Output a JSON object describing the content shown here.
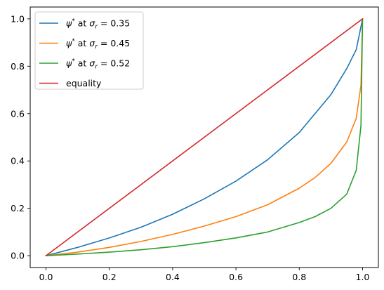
{
  "chart_data": {
    "type": "line",
    "title": "",
    "xlabel": "",
    "ylabel": "",
    "xlim": [
      -0.05,
      1.05
    ],
    "ylim": [
      -0.05,
      1.05
    ],
    "x_ticks": [
      0.0,
      0.2,
      0.4,
      0.6,
      0.8,
      1.0
    ],
    "y_ticks": [
      0.0,
      0.2,
      0.4,
      0.6,
      0.8,
      1.0
    ],
    "x_tick_labels": [
      "0.0",
      "0.2",
      "0.4",
      "0.6",
      "0.8",
      "1.0"
    ],
    "y_tick_labels": [
      "0.0",
      "0.2",
      "0.4",
      "0.6",
      "0.8",
      "1.0"
    ],
    "grid": false,
    "legend_position": "upper-left",
    "series": [
      {
        "name": "ψ* at σr = 0.35",
        "legend": {
          "sym": "ψ",
          "sup": "*",
          "mid": " at ",
          "sym2": "σ",
          "sub": "r",
          "val": " = 0.35"
        },
        "color": "#1f77b4",
        "x": [
          0,
          0.1,
          0.2,
          0.3,
          0.4,
          0.5,
          0.6,
          0.7,
          0.8,
          0.85,
          0.9,
          0.95,
          0.98,
          1.0
        ],
        "y": [
          0,
          0.035,
          0.075,
          0.12,
          0.175,
          0.24,
          0.315,
          0.405,
          0.52,
          0.6,
          0.68,
          0.79,
          0.87,
          1.0
        ]
      },
      {
        "name": "ψ* at σr = 0.45",
        "legend": {
          "sym": "ψ",
          "sup": "*",
          "mid": " at ",
          "sym2": "σ",
          "sub": "r",
          "val": " = 0.45"
        },
        "color": "#ff7f0e",
        "x": [
          0,
          0.1,
          0.2,
          0.3,
          0.4,
          0.5,
          0.6,
          0.7,
          0.8,
          0.85,
          0.9,
          0.95,
          0.98,
          0.995,
          1.0
        ],
        "y": [
          0,
          0.015,
          0.035,
          0.06,
          0.09,
          0.125,
          0.165,
          0.215,
          0.285,
          0.33,
          0.39,
          0.48,
          0.58,
          0.72,
          1.0
        ]
      },
      {
        "name": "ψ* at σr = 0.52",
        "legend": {
          "sym": "ψ",
          "sup": "*",
          "mid": " at ",
          "sym2": "σ",
          "sub": "r",
          "val": " = 0.52"
        },
        "color": "#2ca02c",
        "x": [
          0,
          0.1,
          0.2,
          0.3,
          0.4,
          0.5,
          0.6,
          0.7,
          0.8,
          0.85,
          0.9,
          0.95,
          0.98,
          0.995,
          1.0
        ],
        "y": [
          0,
          0.007,
          0.015,
          0.025,
          0.038,
          0.055,
          0.075,
          0.1,
          0.14,
          0.165,
          0.2,
          0.26,
          0.36,
          0.55,
          1.0
        ]
      },
      {
        "name": "equality",
        "legend": {
          "plain": "equality"
        },
        "color": "#d62728",
        "x": [
          0,
          1
        ],
        "y": [
          0,
          1
        ]
      }
    ]
  }
}
